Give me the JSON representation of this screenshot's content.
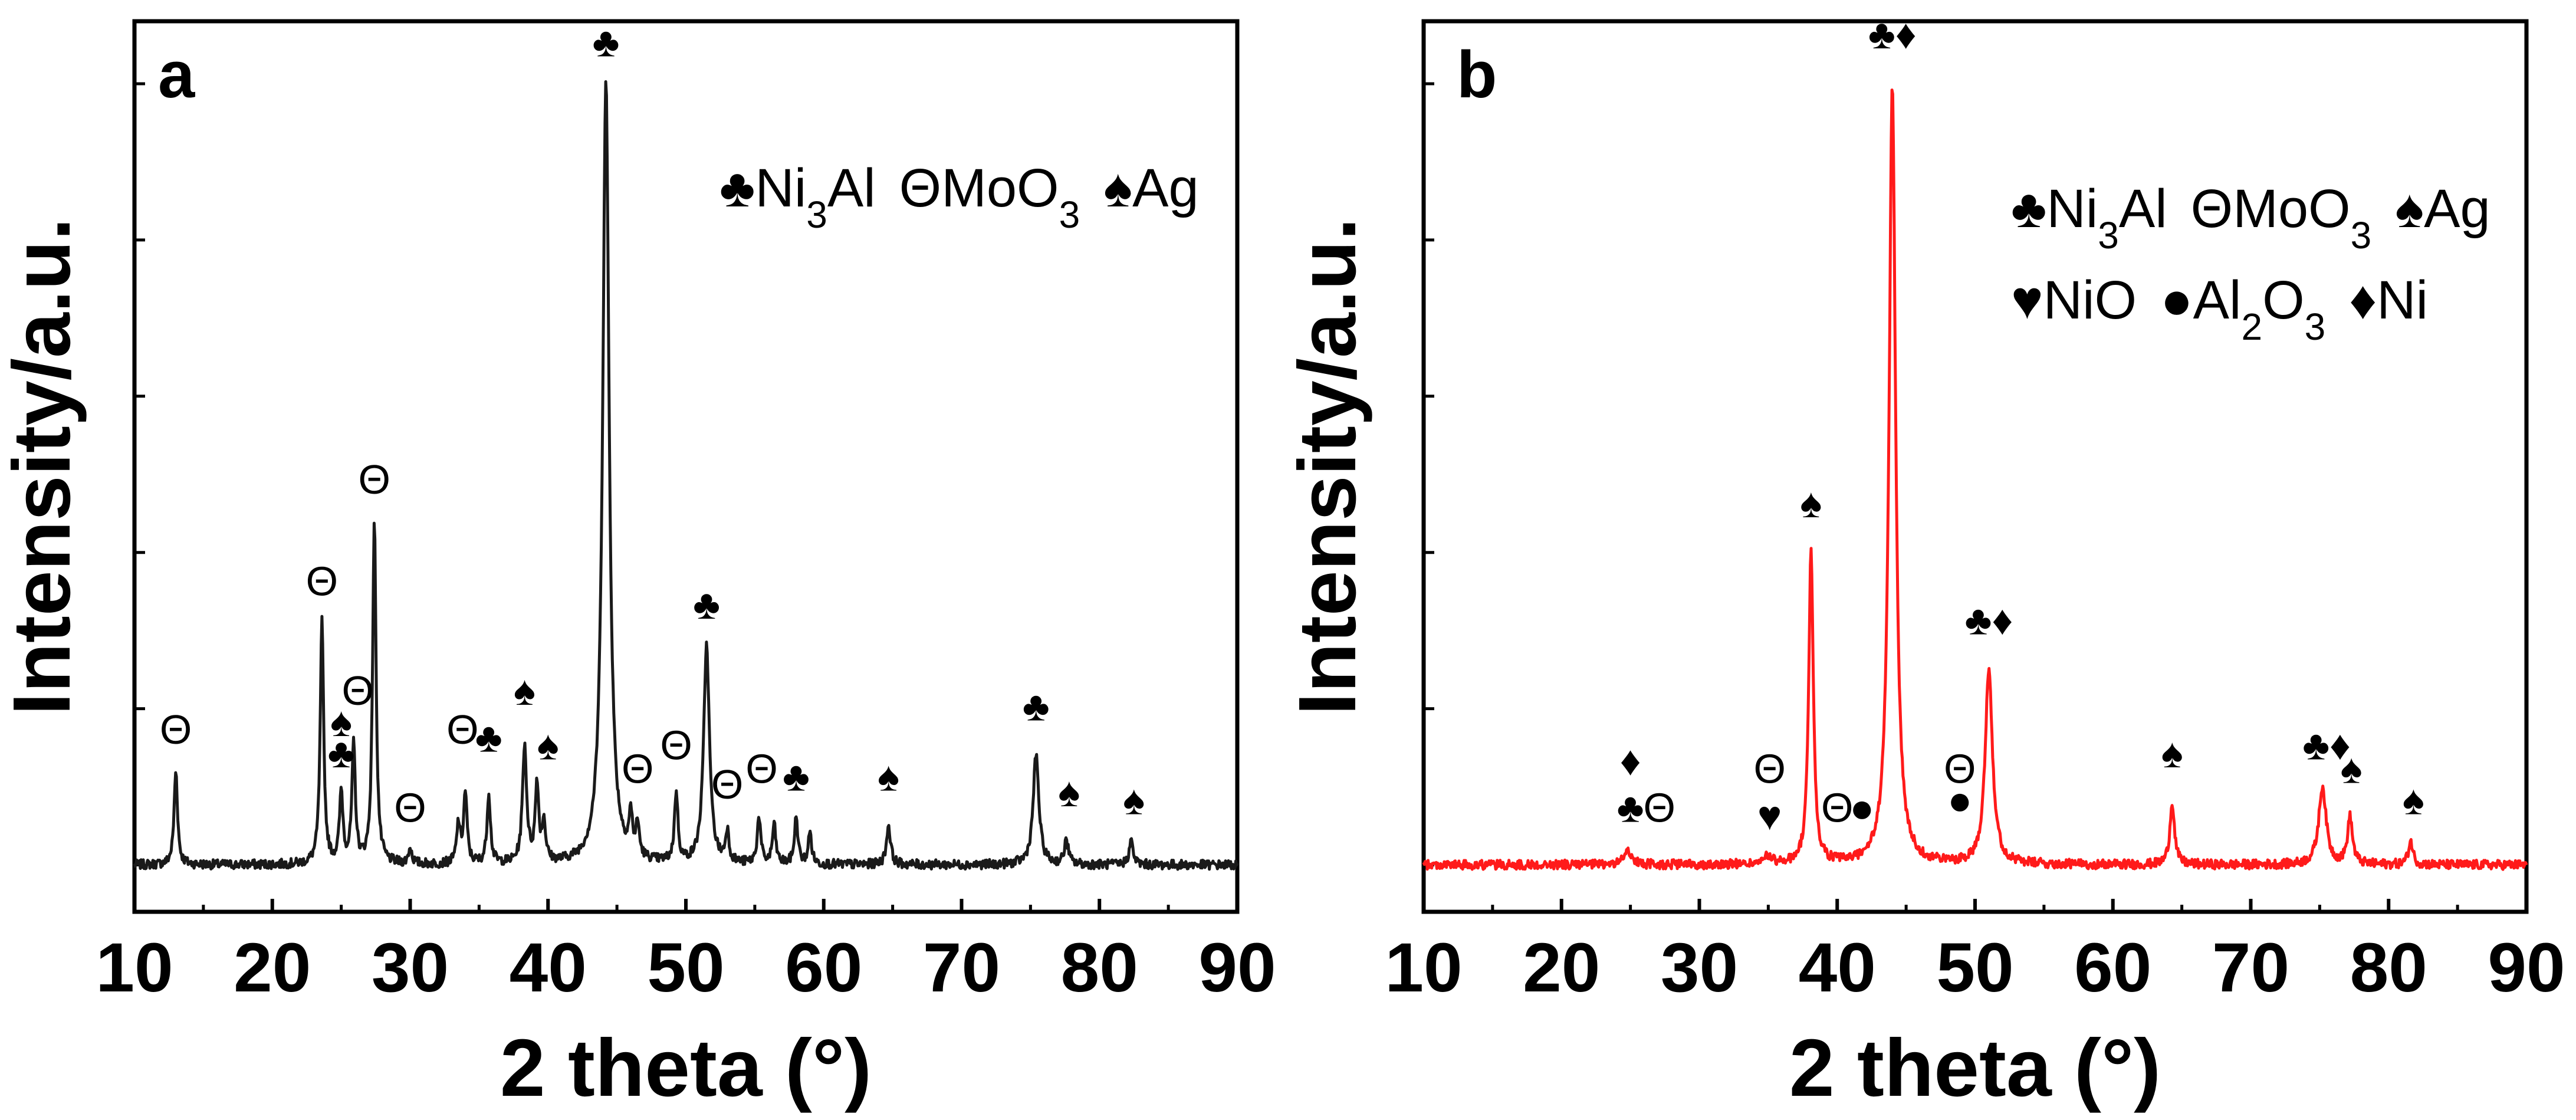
{
  "chart_data": [
    {
      "panel": "a",
      "type": "line",
      "color": "#1a1a1a",
      "xlabel": "2 theta (°)",
      "ylabel": "Intensity/a.u.",
      "xlim": [
        10,
        90
      ],
      "xticks": [
        10,
        20,
        30,
        40,
        50,
        60,
        70,
        80,
        90
      ],
      "ylim": [
        -0.06,
        1.08
      ],
      "yticks_labeled": false,
      "baseline": 0.0,
      "peaks": [
        {
          "x": 13.0,
          "y": 0.12,
          "w": 0.15
        },
        {
          "x": 23.6,
          "y": 0.31,
          "w": 0.15
        },
        {
          "x": 25.0,
          "y": 0.09,
          "w": 0.15
        },
        {
          "x": 25.9,
          "y": 0.15,
          "w": 0.15
        },
        {
          "x": 27.4,
          "y": 0.44,
          "w": 0.15
        },
        {
          "x": 30.0,
          "y": 0.02,
          "w": 0.15
        },
        {
          "x": 33.5,
          "y": 0.05,
          "w": 0.15
        },
        {
          "x": 34.0,
          "y": 0.09,
          "w": 0.15
        },
        {
          "x": 35.7,
          "y": 0.09,
          "w": 0.15
        },
        {
          "x": 38.3,
          "y": 0.15,
          "w": 0.18
        },
        {
          "x": 39.2,
          "y": 0.1,
          "w": 0.15
        },
        {
          "x": 39.7,
          "y": 0.05,
          "w": 0.15
        },
        {
          "x": 44.2,
          "y": 1.0,
          "w": 0.28
        },
        {
          "x": 46.0,
          "y": 0.05,
          "w": 0.15
        },
        {
          "x": 46.5,
          "y": 0.04,
          "w": 0.15
        },
        {
          "x": 49.3,
          "y": 0.09,
          "w": 0.15
        },
        {
          "x": 51.5,
          "y": 0.28,
          "w": 0.25
        },
        {
          "x": 53.0,
          "y": 0.04,
          "w": 0.15
        },
        {
          "x": 55.3,
          "y": 0.06,
          "w": 0.15
        },
        {
          "x": 56.4,
          "y": 0.05,
          "w": 0.15
        },
        {
          "x": 58.0,
          "y": 0.06,
          "w": 0.15
        },
        {
          "x": 59.0,
          "y": 0.04,
          "w": 0.15
        },
        {
          "x": 64.7,
          "y": 0.05,
          "w": 0.18
        },
        {
          "x": 75.4,
          "y": 0.14,
          "w": 0.25
        },
        {
          "x": 77.6,
          "y": 0.03,
          "w": 0.18
        },
        {
          "x": 82.3,
          "y": 0.03,
          "w": 0.18
        }
      ],
      "markers": [
        {
          "x": 13.0,
          "y": 0.14,
          "label": "Θ"
        },
        {
          "x": 23.6,
          "y": 0.33,
          "label": "Θ"
        },
        {
          "x": 25.0,
          "y": 0.11,
          "label": "♣"
        },
        {
          "x": 25.0,
          "y": 0.15,
          "label": "♠"
        },
        {
          "x": 26.2,
          "y": 0.19,
          "label": "Θ"
        },
        {
          "x": 27.4,
          "y": 0.46,
          "label": "Θ"
        },
        {
          "x": 30.0,
          "y": 0.04,
          "label": "Θ"
        },
        {
          "x": 33.8,
          "y": 0.14,
          "label": "Θ"
        },
        {
          "x": 35.7,
          "y": 0.13,
          "label": "♣"
        },
        {
          "x": 38.3,
          "y": 0.19,
          "label": "♠"
        },
        {
          "x": 40.0,
          "y": 0.12,
          "label": "♠"
        },
        {
          "x": 44.2,
          "y": 1.02,
          "label": "♣"
        },
        {
          "x": 46.5,
          "y": 0.09,
          "label": "Θ"
        },
        {
          "x": 49.3,
          "y": 0.12,
          "label": "Θ"
        },
        {
          "x": 51.5,
          "y": 0.3,
          "label": "♣"
        },
        {
          "x": 53.0,
          "y": 0.07,
          "label": "Θ"
        },
        {
          "x": 55.5,
          "y": 0.09,
          "label": "Θ"
        },
        {
          "x": 58.0,
          "y": 0.08,
          "label": "♣"
        },
        {
          "x": 64.7,
          "y": 0.08,
          "label": "♠"
        },
        {
          "x": 75.4,
          "y": 0.17,
          "label": "♣"
        },
        {
          "x": 77.8,
          "y": 0.06,
          "label": "♠"
        },
        {
          "x": 82.5,
          "y": 0.05,
          "label": "♠"
        }
      ],
      "legend": [
        [
          {
            "symbol": "♣",
            "text": "Ni",
            "sub": "3",
            "after": "Al"
          },
          {
            "symbol": "Θ",
            "text": "MoO",
            "sub": "3",
            "after": ""
          },
          {
            "symbol": "♠",
            "text": "Ag",
            "sub": "",
            "after": ""
          }
        ]
      ]
    },
    {
      "panel": "b",
      "type": "line",
      "color": "#ff1a1a",
      "xlabel": "2 theta (°)",
      "ylabel": "Intensity/a.u.",
      "xlim": [
        10,
        90
      ],
      "xticks": [
        10,
        20,
        30,
        40,
        50,
        60,
        70,
        80,
        90
      ],
      "ylim": [
        -0.06,
        1.08
      ],
      "yticks_labeled": false,
      "baseline": 0.0,
      "peaks": [
        {
          "x": 24.8,
          "y": 0.02,
          "w": 0.3
        },
        {
          "x": 35.0,
          "y": 0.01,
          "w": 0.3
        },
        {
          "x": 38.1,
          "y": 0.4,
          "w": 0.2
        },
        {
          "x": 44.0,
          "y": 1.0,
          "w": 0.28
        },
        {
          "x": 51.0,
          "y": 0.25,
          "w": 0.32
        },
        {
          "x": 64.3,
          "y": 0.08,
          "w": 0.2
        },
        {
          "x": 75.2,
          "y": 0.1,
          "w": 0.32
        },
        {
          "x": 77.2,
          "y": 0.06,
          "w": 0.22
        },
        {
          "x": 81.6,
          "y": 0.03,
          "w": 0.2
        }
      ],
      "markers": [
        {
          "x": 25.0,
          "y": 0.04,
          "label": "♣"
        },
        {
          "x": 25.0,
          "y": 0.1,
          "label": "♦"
        },
        {
          "x": 27.1,
          "y": 0.04,
          "label": "Θ"
        },
        {
          "x": 35.1,
          "y": 0.03,
          "label": "♥"
        },
        {
          "x": 35.1,
          "y": 0.09,
          "label": "Θ"
        },
        {
          "x": 40.0,
          "y": 0.04,
          "label": "Θ"
        },
        {
          "x": 41.8,
          "y": 0.04,
          "label": "●"
        },
        {
          "x": 48.9,
          "y": 0.05,
          "label": "●"
        },
        {
          "x": 48.9,
          "y": 0.09,
          "label": "Θ"
        },
        {
          "x": 38.1,
          "y": 0.43,
          "label": "♠"
        },
        {
          "x": 44.0,
          "y": 1.03,
          "label": "♣♦"
        },
        {
          "x": 51.0,
          "y": 0.28,
          "label": "♣♦"
        },
        {
          "x": 64.3,
          "y": 0.11,
          "label": "♠"
        },
        {
          "x": 75.5,
          "y": 0.12,
          "label": "♣♦"
        },
        {
          "x": 77.3,
          "y": 0.09,
          "label": "♠"
        },
        {
          "x": 81.8,
          "y": 0.05,
          "label": "♠"
        }
      ],
      "legend": [
        [
          {
            "symbol": "♣",
            "text": "Ni",
            "sub": "3",
            "after": "Al"
          },
          {
            "symbol": "Θ",
            "text": "MoO",
            "sub": "3",
            "after": ""
          },
          {
            "symbol": "♠",
            "text": "Ag",
            "sub": "",
            "after": ""
          }
        ],
        [
          {
            "symbol": "♥",
            "text": "NiO",
            "sub": "",
            "after": ""
          },
          {
            "symbol": "●",
            "text": "Al",
            "sub": "2",
            "after": "O",
            "sub2": "3"
          },
          {
            "symbol": "♦",
            "text": "Ni",
            "sub": "",
            "after": ""
          }
        ]
      ]
    }
  ]
}
